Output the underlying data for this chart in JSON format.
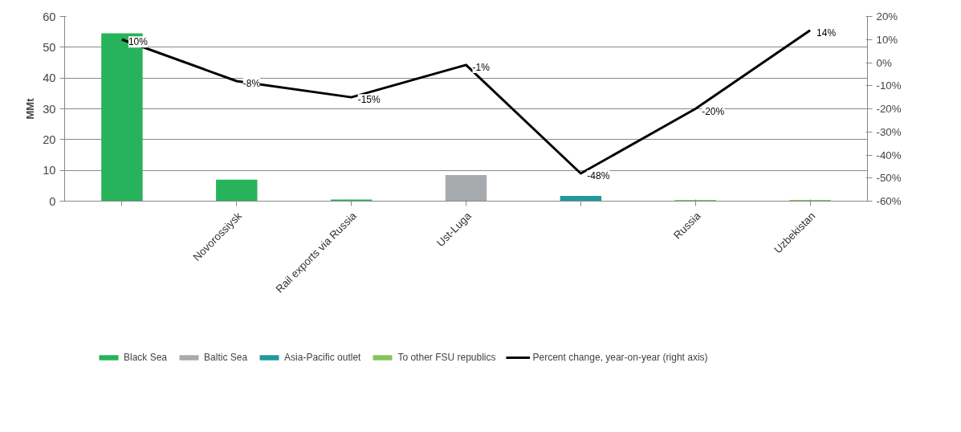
{
  "chart_data": {
    "type": "bar",
    "ylabel": "MMt",
    "stacked": true,
    "categories": [
      null,
      "Novorossiysk",
      "Rail exports via Russia",
      "Ust-Luga",
      null,
      "Russia",
      "Uzbekistan"
    ],
    "series": [
      {
        "name": "Black Sea",
        "color": "#27b35b",
        "values": [
          54.5,
          7,
          0.5,
          null,
          null,
          null,
          null
        ]
      },
      {
        "name": "Baltic Sea",
        "color": "#a7abae",
        "values": [
          null,
          null,
          null,
          8.5,
          null,
          null,
          null
        ]
      },
      {
        "name": "Asia-Pacific outlet",
        "color": "#22999a",
        "values": [
          null,
          null,
          null,
          null,
          1.7,
          null,
          null
        ]
      },
      {
        "name": "To other FSU republics",
        "color": "#84c55a",
        "values": [
          null,
          null,
          null,
          null,
          null,
          0.4,
          0.4
        ]
      },
      {
        "name": "Percent change, year-on-year (right axis)",
        "type": "line",
        "axis": "y2",
        "color": "#000000",
        "values": [
          10,
          -8,
          -15,
          -1,
          -48,
          -20,
          14
        ],
        "value_labels": [
          "10%",
          "-8%",
          "-15%",
          "-1%",
          "-48%",
          "-20%",
          "14%"
        ]
      }
    ],
    "ylim": [
      0,
      60
    ],
    "yticks": [
      0,
      10,
      20,
      30,
      40,
      50,
      60
    ],
    "y2lim": [
      -60,
      20
    ],
    "y2ticks": [
      {
        "value": -60,
        "label": "-60%"
      },
      {
        "value": -50,
        "label": "-50%"
      },
      {
        "value": -40,
        "label": "-40%"
      },
      {
        "value": -30,
        "label": "-30%"
      },
      {
        "value": -20,
        "label": "-20%"
      },
      {
        "value": -10,
        "label": "-10%"
      },
      {
        "value": 0,
        "label": "0%"
      },
      {
        "value": 10,
        "label": "10%"
      },
      {
        "value": 20,
        "label": "20%"
      }
    ],
    "grid": "y",
    "legend": "bottom"
  }
}
